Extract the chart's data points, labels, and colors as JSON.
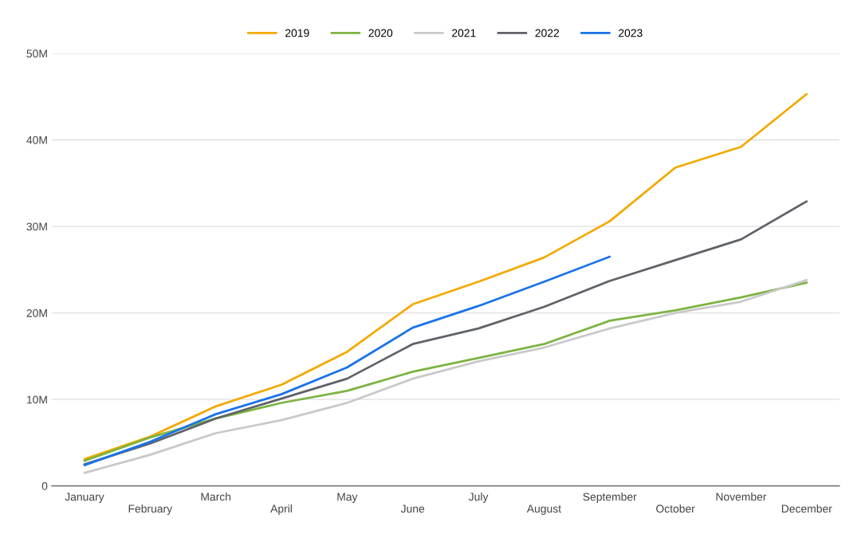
{
  "chart_data": {
    "type": "line",
    "categories": [
      "January",
      "February",
      "March",
      "April",
      "May",
      "June",
      "July",
      "August",
      "September",
      "October",
      "November",
      "December"
    ],
    "series": [
      {
        "name": "2019",
        "color": "#f2a900",
        "values": [
          3.1,
          5.7,
          9.2,
          11.7,
          15.5,
          21.0,
          23.6,
          26.4,
          30.6,
          36.8,
          39.2,
          45.3
        ]
      },
      {
        "name": "2020",
        "color": "#7cb342",
        "values": [
          2.9,
          5.6,
          7.8,
          9.6,
          11.0,
          13.2,
          14.8,
          16.4,
          19.1,
          20.3,
          21.8,
          23.5
        ]
      },
      {
        "name": "2021",
        "color": "#c9c9c9",
        "values": [
          1.5,
          3.6,
          6.1,
          7.6,
          9.6,
          12.4,
          14.4,
          16.0,
          18.2,
          20.0,
          21.3,
          23.8
        ]
      },
      {
        "name": "2022",
        "color": "#5f6368",
        "values": [
          2.5,
          4.9,
          7.8,
          10.1,
          12.4,
          16.4,
          18.2,
          20.7,
          23.7,
          26.1,
          28.5,
          32.9
        ]
      },
      {
        "name": "2023",
        "color": "#1a73e8",
        "values": [
          2.4,
          5.1,
          8.3,
          10.6,
          13.7,
          18.3,
          20.8,
          23.6,
          26.5,
          null,
          null,
          null
        ]
      }
    ],
    "ylim": [
      0,
      50
    ],
    "yticks": [
      0,
      {
        "value": 10,
        "label": "10M"
      },
      {
        "value": 20,
        "label": "20M"
      },
      {
        "value": 30,
        "label": "30M"
      },
      {
        "value": 40,
        "label": "40M"
      },
      {
        "value": 50,
        "label": "50M"
      }
    ],
    "grid": "y",
    "legend": "top",
    "marker": "none",
    "line_style": "solid"
  }
}
